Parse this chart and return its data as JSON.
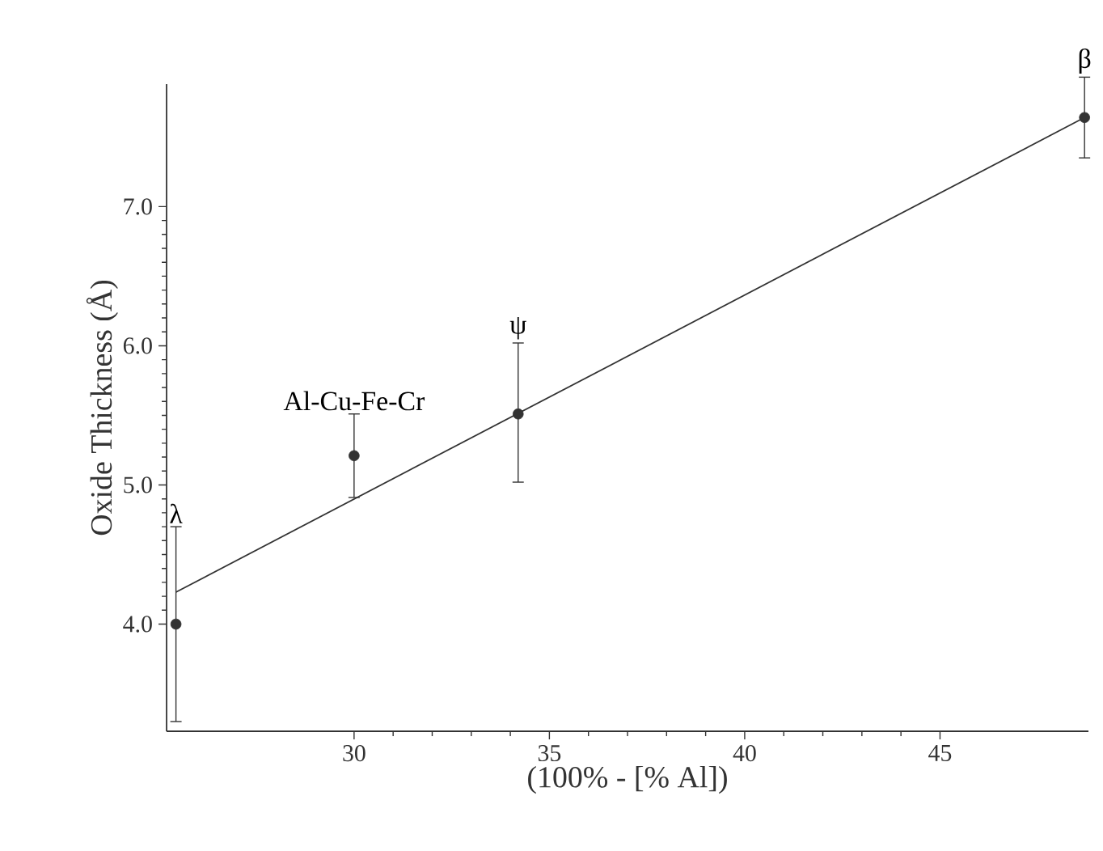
{
  "chart_data": {
    "type": "scatter",
    "xlabel": "(100% - [% Al])",
    "ylabel": "Oxide Thickness (Å)",
    "xlim": [
      25.2,
      48.8
    ],
    "ylim": [
      3.23,
      7.88
    ],
    "xticks": [
      30,
      35,
      40,
      45
    ],
    "yticks": [
      {
        "value": 4,
        "label": "4.0"
      },
      {
        "value": 5,
        "label": "5.0"
      },
      {
        "value": 6,
        "label": "6.0"
      },
      {
        "value": 7,
        "label": "7.0"
      }
    ],
    "grid": false,
    "series": [
      {
        "marker": "circle",
        "color": "#333333",
        "x": [
          25.44,
          30.0,
          34.2,
          48.7
        ],
        "values": [
          4.0,
          5.21,
          5.51,
          7.64
        ],
        "errors": [
          [
            3.3,
            4.7
          ],
          [
            4.91,
            5.51
          ],
          [
            5.02,
            6.02
          ],
          [
            7.35,
            7.93
          ]
        ]
      },
      {
        "type": "line",
        "marker": "none",
        "color": "#333333",
        "x": [
          25.44,
          48.7
        ],
        "values": [
          4.23,
          7.64
        ]
      }
    ],
    "annotations": [
      {
        "text": "λ",
        "x": 25.44,
        "y": 4.7
      },
      {
        "text": "Al-Cu-Fe-Cr",
        "x": 30.0,
        "y": 5.51
      },
      {
        "text": "ψ",
        "x": 34.2,
        "y": 6.02
      },
      {
        "text": "β",
        "x": 48.7,
        "y": 7.93
      }
    ]
  }
}
